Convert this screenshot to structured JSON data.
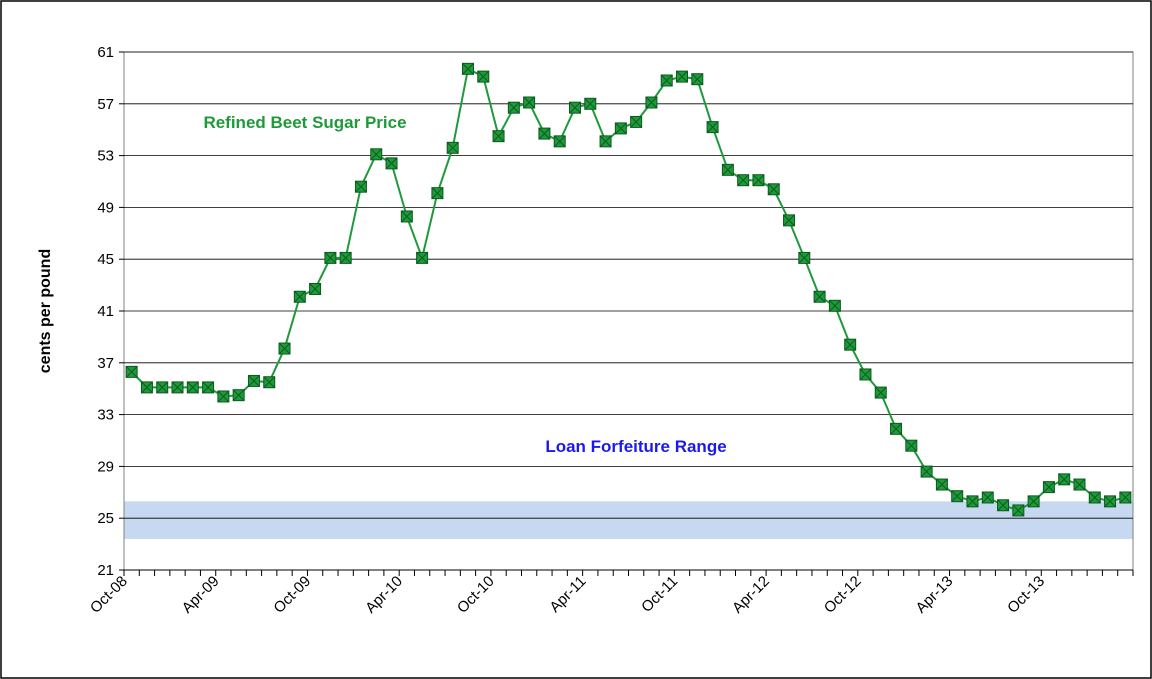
{
  "chart_data": {
    "type": "line",
    "y_label": "cents per pound",
    "annotations": [
      "Refined Beet Sugar Price",
      "Loan Forfeiture Range"
    ],
    "band": {
      "name": "Loan Forfeiture Range",
      "range": [
        23.4,
        26.3
      ],
      "color": "#c6d9f0"
    },
    "categories": [
      "Oct-08",
      null,
      null,
      null,
      null,
      null,
      "Apr-09",
      null,
      null,
      null,
      null,
      null,
      "Oct-09",
      null,
      null,
      null,
      null,
      null,
      "Apr-10",
      null,
      null,
      null,
      null,
      null,
      "Oct-10",
      null,
      null,
      null,
      null,
      null,
      "Apr-11",
      null,
      null,
      null,
      null,
      null,
      "Oct-11",
      null,
      null,
      null,
      null,
      null,
      "Apr-12",
      null,
      null,
      null,
      null,
      null,
      "Oct-12",
      null,
      null,
      null,
      null,
      null,
      "Apr-13",
      null,
      null,
      null,
      null,
      null,
      "Oct-13",
      null,
      null,
      null,
      null,
      null
    ],
    "series": [
      {
        "name": "Refined Beet Sugar Price",
        "color": "#1f9a3a",
        "values": [
          36.3,
          35.1,
          35.1,
          35.1,
          35.1,
          35.1,
          34.4,
          34.5,
          35.6,
          35.5,
          38.1,
          42.1,
          42.7,
          45.1,
          45.1,
          50.6,
          53.1,
          52.4,
          48.3,
          45.1,
          50.1,
          53.6,
          59.7,
          59.1,
          54.5,
          56.7,
          57.1,
          54.7,
          54.1,
          56.7,
          57.0,
          54.1,
          55.1,
          55.6,
          57.1,
          58.8,
          59.1,
          58.9,
          55.2,
          51.9,
          51.1,
          51.1,
          50.4,
          48.0,
          45.1,
          42.1,
          41.4,
          38.4,
          36.1,
          34.7,
          31.9,
          30.6,
          28.6,
          27.6,
          26.7,
          26.3,
          26.6,
          26.0,
          25.6,
          26.3,
          27.4,
          28.0,
          27.6,
          26.6,
          26.3,
          26.6
        ]
      }
    ],
    "ylim": [
      21,
      61
    ],
    "yticks": [
      21,
      25,
      29,
      33,
      37,
      41,
      45,
      49,
      53,
      57,
      61
    ],
    "grid": true
  }
}
